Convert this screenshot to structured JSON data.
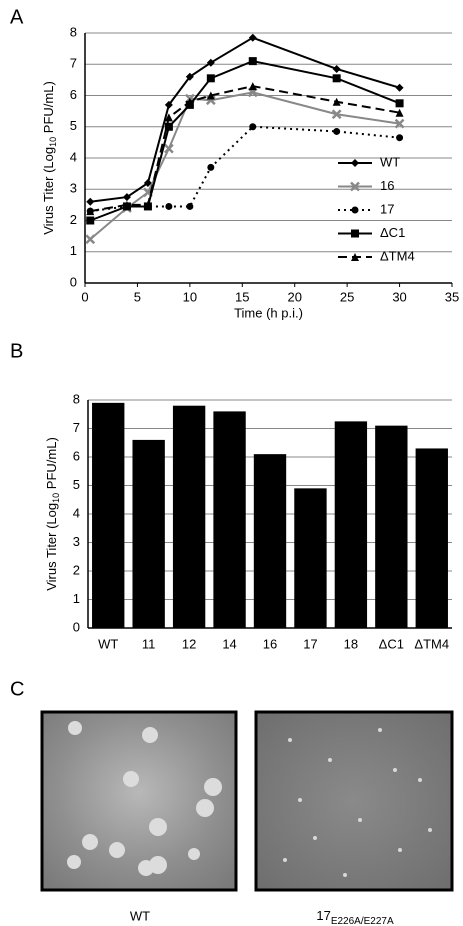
{
  "chart_data": [
    {
      "type": "line",
      "panel_label": "A",
      "ylabel": [
        "Virus Titer (Log",
        "10",
        " PFU/mL)"
      ],
      "xlabel": "Time (h p.i.)",
      "x": [
        0.5,
        4,
        6,
        8,
        10,
        12,
        16,
        24,
        30
      ],
      "series": [
        {
          "name": "WT",
          "color": "#000000",
          "marker": "diamond",
          "dash": "solid",
          "values": [
            2.6,
            2.75,
            3.2,
            5.7,
            6.6,
            7.05,
            7.85,
            6.85,
            6.25
          ]
        },
        {
          "name": "16",
          "color": "#888888",
          "marker": "cross",
          "dash": "solid",
          "values": [
            1.4,
            2.4,
            2.9,
            4.3,
            5.9,
            5.85,
            6.1,
            5.4,
            5.1
          ]
        },
        {
          "name": "17",
          "color": "#000000",
          "marker": "circle",
          "dash": "dotted",
          "values": [
            2.3,
            2.45,
            2.45,
            2.45,
            2.45,
            3.7,
            5.0,
            4.85,
            4.65
          ]
        },
        {
          "name": "ΔC1",
          "color": "#000000",
          "marker": "square",
          "dash": "solid",
          "values": [
            2.0,
            2.45,
            2.45,
            5.0,
            5.7,
            6.55,
            7.1,
            6.55,
            5.75
          ]
        },
        {
          "name": "ΔTM4",
          "color": "#000000",
          "marker": "triangle",
          "dash": "dashed",
          "values": [
            2.3,
            2.5,
            2.5,
            5.3,
            5.8,
            6.0,
            6.3,
            5.8,
            5.45
          ]
        }
      ],
      "xlim": [
        0,
        35
      ],
      "xticks": [
        0,
        5,
        10,
        15,
        20,
        25,
        30,
        35
      ],
      "ylim": [
        0,
        8
      ],
      "yticks": [
        0,
        1,
        2,
        3,
        4,
        5,
        6,
        7,
        8
      ],
      "grid": true,
      "legend": "lower right"
    },
    {
      "type": "bar",
      "panel_label": "B",
      "ylabel": [
        "Virus Titer (Log",
        "10",
        " PFU/mL)"
      ],
      "categories": [
        "WT",
        "11",
        "12",
        "14",
        "16",
        "17",
        "18",
        "ΔC1",
        "ΔTM4"
      ],
      "values": [
        7.9,
        6.6,
        7.8,
        7.6,
        6.1,
        4.9,
        7.25,
        7.1,
        6.3
      ],
      "color": "#000000",
      "ylim": [
        0,
        8
      ],
      "yticks": [
        0,
        1,
        2,
        3,
        4,
        5,
        6,
        7,
        8
      ],
      "grid": true
    }
  ],
  "panel_c": {
    "panel_label": "C",
    "labels": [
      {
        "text": "WT"
      },
      {
        "text": "17",
        "subscript": "E226A/E227A"
      }
    ]
  }
}
